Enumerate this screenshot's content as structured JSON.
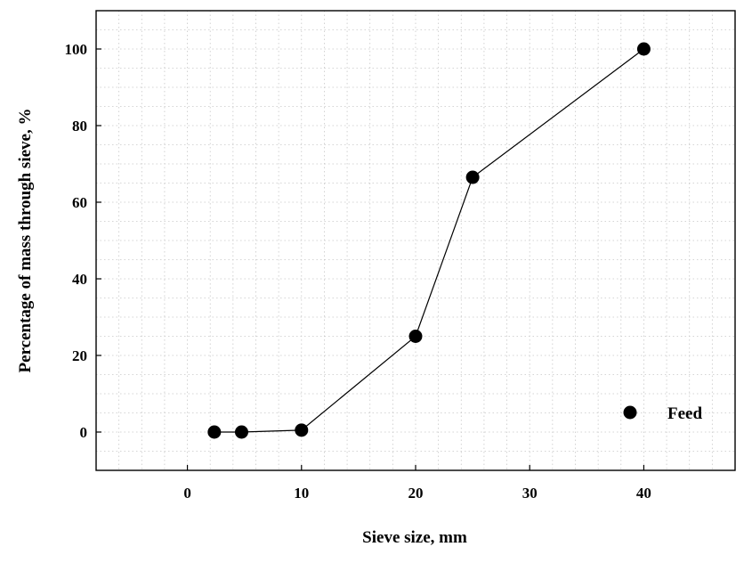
{
  "chart_data": {
    "type": "line",
    "title": "",
    "xlabel": "Sieve size, mm",
    "ylabel": "Percentage of mass through sieve, %",
    "xlim": [
      -8,
      48
    ],
    "ylim": [
      -10,
      110
    ],
    "xticks": [
      0,
      10,
      20,
      30,
      40
    ],
    "yticks": [
      0,
      20,
      40,
      60,
      80,
      100
    ],
    "grid": true,
    "legend_position": "lower-right",
    "series": [
      {
        "name": "Feed",
        "marker": "filled-circle",
        "color": "#000000",
        "x": [
          2.36,
          4.75,
          10,
          20,
          25,
          40
        ],
        "y": [
          0,
          0,
          0.5,
          25,
          66.5,
          100
        ]
      }
    ]
  }
}
